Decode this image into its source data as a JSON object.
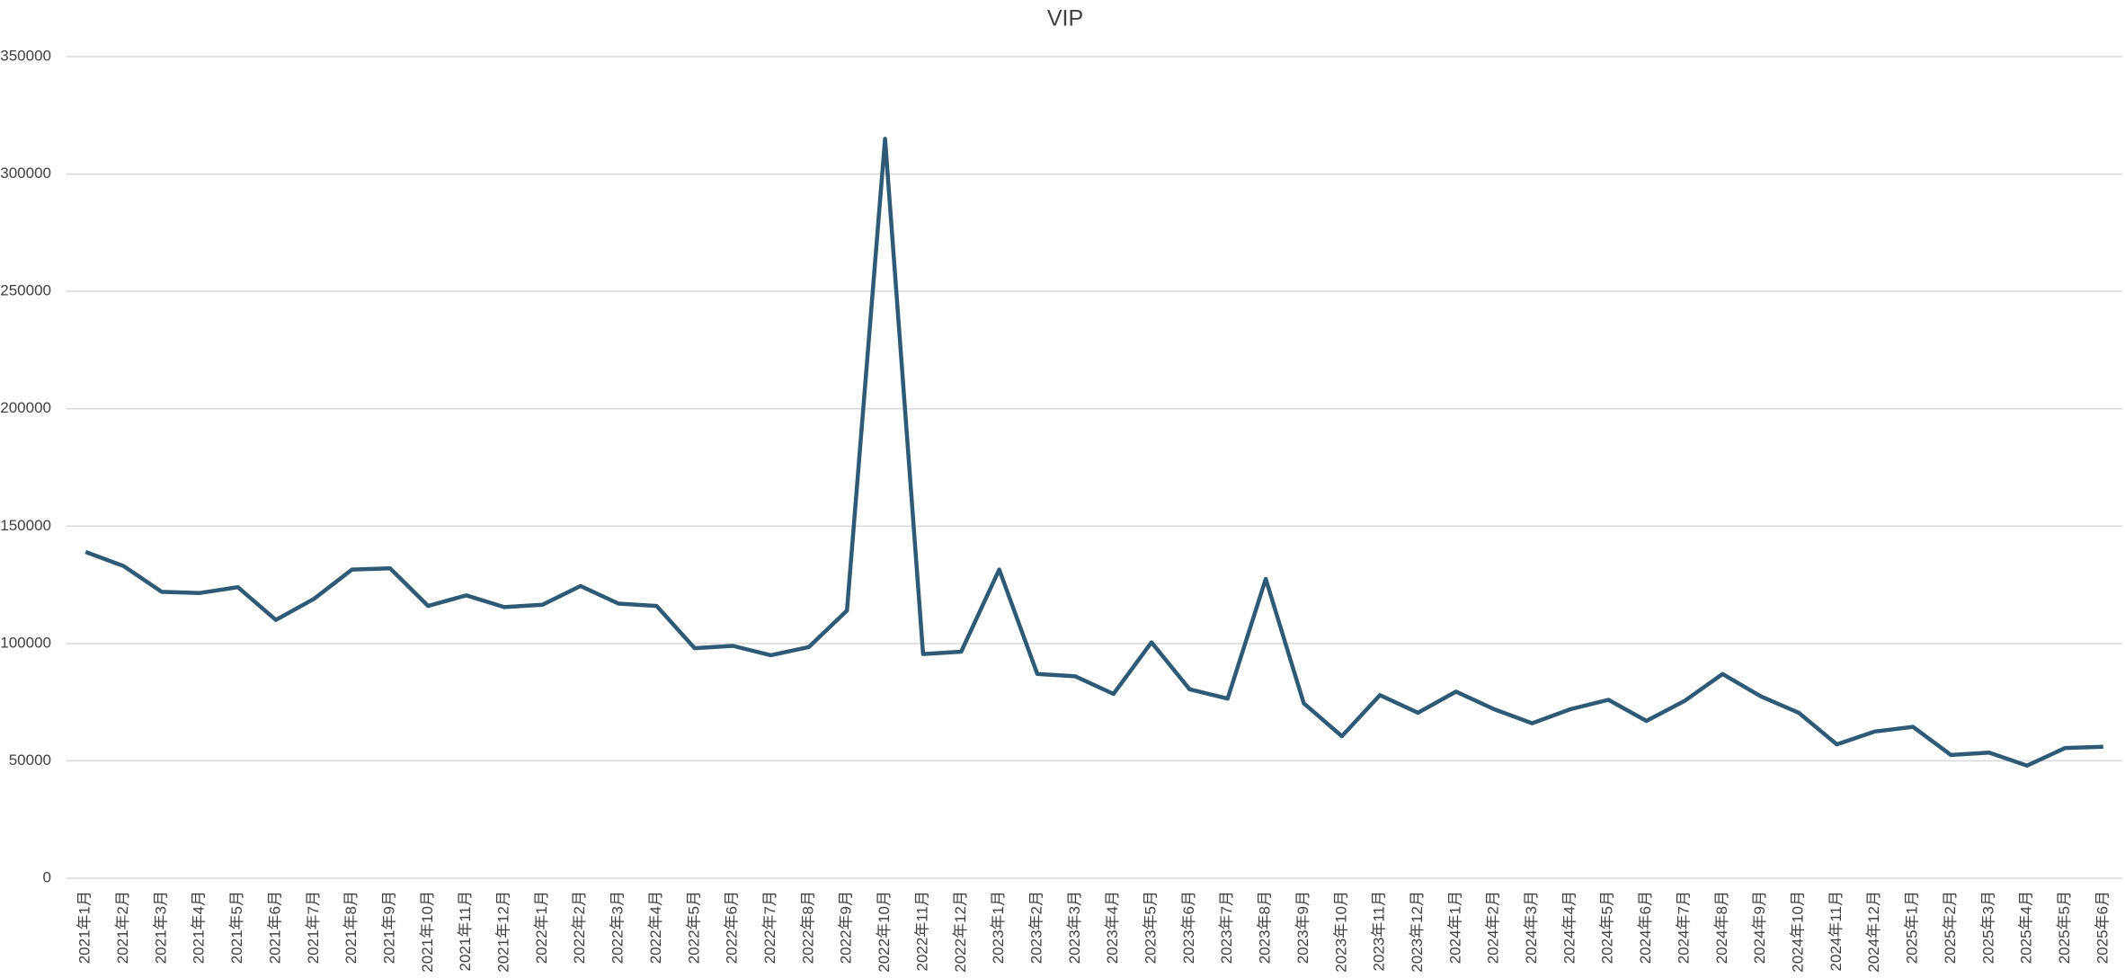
{
  "chart_data": {
    "type": "line",
    "title": "VIP",
    "categories": [
      "2021年1月",
      "2021年2月",
      "2021年3月",
      "2021年4月",
      "2021年5月",
      "2021年6月",
      "2021年7月",
      "2021年8月",
      "2021年9月",
      "2021年10月",
      "2021年11月",
      "2021年12月",
      "2022年1月",
      "2022年2月",
      "2022年3月",
      "2022年4月",
      "2022年5月",
      "2022年6月",
      "2022年7月",
      "2022年8月",
      "2022年9月",
      "2022年10月",
      "2022年11月",
      "2022年12月",
      "2023年1月",
      "2023年2月",
      "2023年3月",
      "2023年4月",
      "2023年5月",
      "2023年6月",
      "2023年7月",
      "2023年8月",
      "2023年9月",
      "2023年10月",
      "2023年11月",
      "2023年12月",
      "2024年1月",
      "2024年2月",
      "2024年3月",
      "2024年4月",
      "2024年5月",
      "2024年6月",
      "2024年7月",
      "2024年8月",
      "2024年9月",
      "2024年10月",
      "2024年11月",
      "2024年12月",
      "2025年1月",
      "2025年2月",
      "2025年3月",
      "2025年4月",
      "2025年5月",
      "2025年6月"
    ],
    "values": [
      139000,
      133000,
      122000,
      121500,
      124000,
      110000,
      119000,
      131500,
      132000,
      116000,
      120500,
      115500,
      116500,
      124500,
      117000,
      116000,
      98000,
      99000,
      95000,
      98500,
      114000,
      315000,
      95500,
      96500,
      131500,
      87000,
      86000,
      78500,
      100500,
      80500,
      76500,
      127500,
      74500,
      60500,
      78000,
      70500,
      79500,
      72000,
      66000,
      72000,
      76000,
      67000,
      75500,
      87000,
      77500,
      70500,
      57000,
      62500,
      64500,
      52500,
      53500,
      48000,
      55500,
      56000
    ],
    "color": "#2e5a78",
    "ylim": [
      0,
      350000
    ],
    "yticks": [
      0,
      50000,
      100000,
      150000,
      200000,
      250000,
      300000,
      350000
    ],
    "grid": true
  }
}
